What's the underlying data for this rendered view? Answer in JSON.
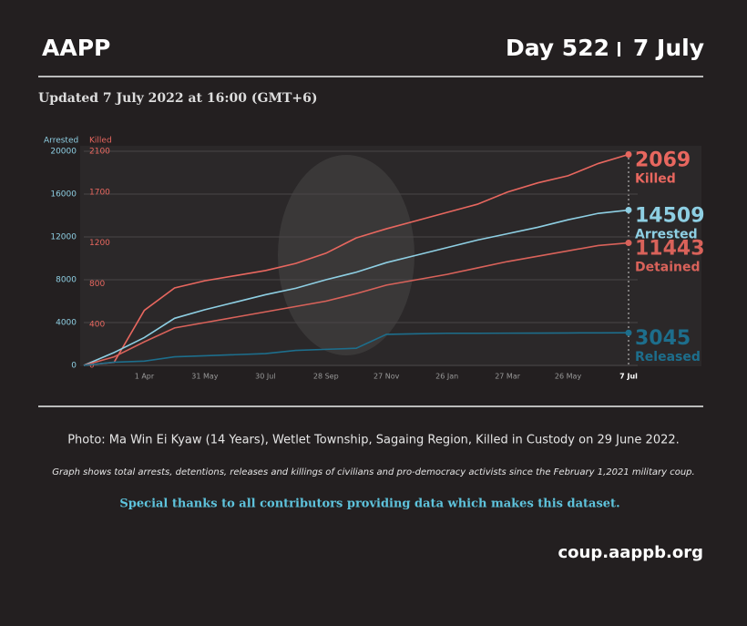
{
  "header": {
    "brand": "AAPP",
    "day": "Day 522",
    "date": "7 July"
  },
  "updated": "Updated 7 July 2022 at 16:00 (GMT+6)",
  "chart_data": {
    "type": "line",
    "ylabel": "Arrested",
    "y2label": "Killed",
    "categories": [
      null,
      null,
      "1 Apr",
      null,
      "31 May",
      null,
      "30 Jul",
      null,
      "28 Sep",
      null,
      "27 Nov",
      null,
      "26 Jan",
      null,
      "27 Mar",
      null,
      "26 May",
      null,
      "7 Jul"
    ],
    "ylim": [
      0,
      20000
    ],
    "yticks": [
      0,
      4000,
      8000,
      12000,
      16000,
      20000
    ],
    "y2lim": [
      0,
      2100
    ],
    "y2ticks": [
      0,
      400,
      800,
      1200,
      1700,
      2100
    ],
    "grid": true,
    "series": [
      {
        "name": "Killed",
        "color": "#e8675f",
        "axis": "y2",
        "values": [
          0,
          30,
          540,
          760,
          830,
          880,
          930,
          1000,
          1100,
          1250,
          1340,
          1420,
          1500,
          1580,
          1700,
          1790,
          1860,
          1980,
          2069
        ]
      },
      {
        "name": "Arrested",
        "color": "#8ecfe3",
        "values": [
          0,
          1200,
          2600,
          4400,
          5200,
          5900,
          6600,
          7200,
          8000,
          8700,
          9600,
          10300,
          11000,
          11700,
          12300,
          12900,
          13600,
          14200,
          14509
        ]
      },
      {
        "name": "Detained",
        "color": "#d9625a",
        "values": [
          0,
          800,
          2200,
          3500,
          4000,
          4500,
          5000,
          5500,
          6000,
          6700,
          7500,
          8000,
          8500,
          9100,
          9700,
          10200,
          10700,
          11200,
          11443
        ]
      },
      {
        "name": "Released",
        "color": "#1d6e8c",
        "values": [
          0,
          300,
          400,
          800,
          900,
          1000,
          1100,
          1400,
          1500,
          1600,
          2900,
          2950,
          3000,
          3000,
          3010,
          3020,
          3030,
          3040,
          3045
        ]
      }
    ]
  },
  "caption": "Photo: Ma Win Ei Kyaw (14 Years), Wetlet Township, Sagaing Region, Killed in Custody on 29 June 2022.",
  "note": "Graph shows total arrests, detentions, releases and killings of civilians and pro-democracy activists since the February 1,2021 military coup.",
  "thanks": "Special thanks to all contributors providing data which makes this dataset.",
  "url": "coup.aappb.org"
}
